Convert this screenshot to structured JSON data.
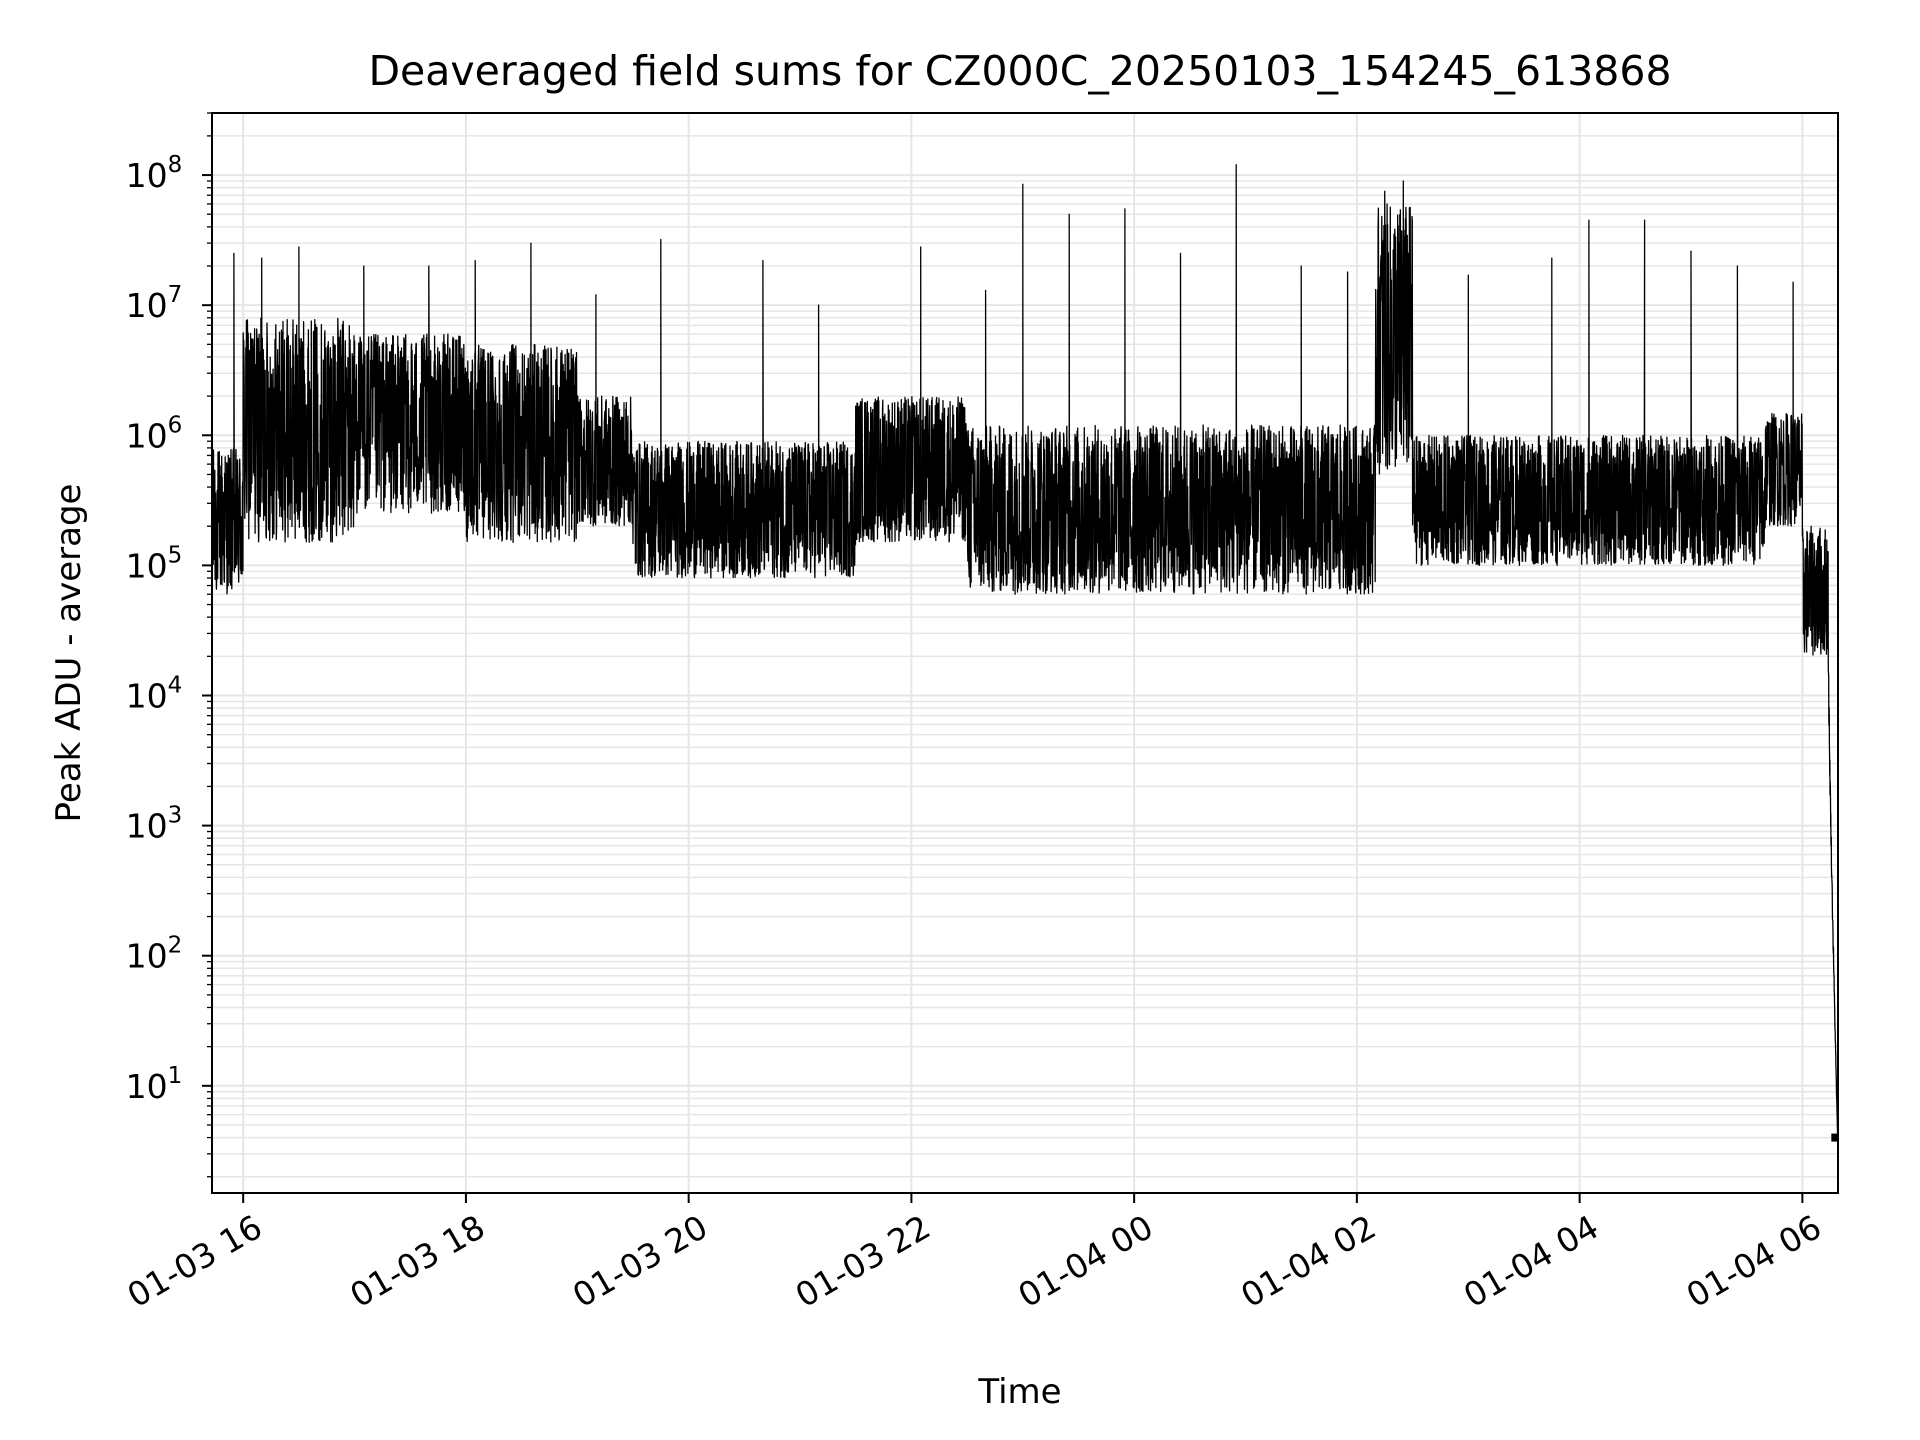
{
  "chart_data": {
    "type": "line",
    "title": "Deaveraged field sums for CZ000C_20250103_154245_613868",
    "xlabel": "Time",
    "ylabel": "Peak ADU - average",
    "yscale": "log",
    "grid": true,
    "line_color": "#000000",
    "grid_color": "#e6e6e6",
    "x_ticks": [
      "01-03 16",
      "01-03 18",
      "01-03 20",
      "01-03 22",
      "01-04 00",
      "01-04 02",
      "01-04 04",
      "01-04 06"
    ],
    "x_tick_hours": [
      16,
      18,
      20,
      22,
      24,
      26,
      28,
      30
    ],
    "x_range_hours": [
      15.72,
      30.32
    ],
    "y_ticks": [
      {
        "base": "10",
        "exp": "1",
        "value": 10
      },
      {
        "base": "10",
        "exp": "2",
        "value": 100
      },
      {
        "base": "10",
        "exp": "3",
        "value": 1000
      },
      {
        "base": "10",
        "exp": "4",
        "value": 10000
      },
      {
        "base": "10",
        "exp": "5",
        "value": 100000
      },
      {
        "base": "10",
        "exp": "6",
        "value": 1000000
      },
      {
        "base": "10",
        "exp": "7",
        "value": 10000000
      },
      {
        "base": "10",
        "exp": "8",
        "value": 100000000
      }
    ],
    "ylim": [
      1.5,
      300000000
    ],
    "series": [
      {
        "x_start": "2025-01-03 15:43",
        "x_end": "2025-01-04 06:19",
        "segments": [
          {
            "x": [
              "15:43",
              "16:00"
            ],
            "range": [
              60000,
              800000
            ]
          },
          {
            "x": [
              "16:00",
              "17:00"
            ],
            "range": [
              150000,
              8000000
            ]
          },
          {
            "x": [
              "17:00",
              "18:00"
            ],
            "range": [
              250000,
              6000000
            ]
          },
          {
            "x": [
              "18:00",
              "19:00"
            ],
            "range": [
              150000,
              5000000
            ]
          },
          {
            "x": [
              "19:00",
              "19:30"
            ],
            "range": [
              200000,
              2000000
            ]
          },
          {
            "x": [
              "19:30",
              "21:30"
            ],
            "range": [
              80000,
              900000
            ]
          },
          {
            "x": [
              "21:30",
              "22:30"
            ],
            "range": [
              150000,
              2000000
            ]
          },
          {
            "x": [
              "22:30",
              "02:10"
            ],
            "range": [
              60000,
              1200000
            ]
          },
          {
            "x": [
              "02:10",
              "02:30"
            ],
            "range": [
              500000,
              60000000
            ]
          },
          {
            "x": [
              "02:30",
              "05:40"
            ],
            "range": [
              100000,
              1000000
            ]
          },
          {
            "x": [
              "05:40",
              "06:00"
            ],
            "range": [
              200000,
              1500000
            ]
          },
          {
            "x": [
              "06:00",
              "06:14"
            ],
            "range": [
              20000,
              200000
            ]
          },
          {
            "x": [
              "06:14",
              "06:19"
            ],
            "range": [
              4,
              20000
            ]
          }
        ],
        "spikes": [
          {
            "x": "15:55",
            "y": 25000000
          },
          {
            "x": "16:10",
            "y": 23000000
          },
          {
            "x": "16:30",
            "y": 28000000
          },
          {
            "x": "17:05",
            "y": 20000000
          },
          {
            "x": "17:40",
            "y": 20000000
          },
          {
            "x": "18:05",
            "y": 22000000
          },
          {
            "x": "18:35",
            "y": 30000000
          },
          {
            "x": "19:10",
            "y": 12000000
          },
          {
            "x": "19:45",
            "y": 32000000
          },
          {
            "x": "20:40",
            "y": 22000000
          },
          {
            "x": "21:10",
            "y": 10000000
          },
          {
            "x": "22:05",
            "y": 28000000
          },
          {
            "x": "22:40",
            "y": 13000000
          },
          {
            "x": "23:00",
            "y": 85000000
          },
          {
            "x": "23:25",
            "y": 50000000
          },
          {
            "x": "23:55",
            "y": 55000000
          },
          {
            "x": "00:25",
            "y": 25000000
          },
          {
            "x": "00:55",
            "y": 120000000
          },
          {
            "x": "01:30",
            "y": 20000000
          },
          {
            "x": "01:55",
            "y": 18000000
          },
          {
            "x": "02:15",
            "y": 75000000
          },
          {
            "x": "02:25",
            "y": 90000000
          },
          {
            "x": "03:00",
            "y": 17000000
          },
          {
            "x": "03:45",
            "y": 23000000
          },
          {
            "x": "04:05",
            "y": 45000000
          },
          {
            "x": "04:35",
            "y": 45000000
          },
          {
            "x": "05:00",
            "y": 26000000
          },
          {
            "x": "05:25",
            "y": 20000000
          },
          {
            "x": "05:55",
            "y": 15000000
          }
        ]
      }
    ]
  }
}
